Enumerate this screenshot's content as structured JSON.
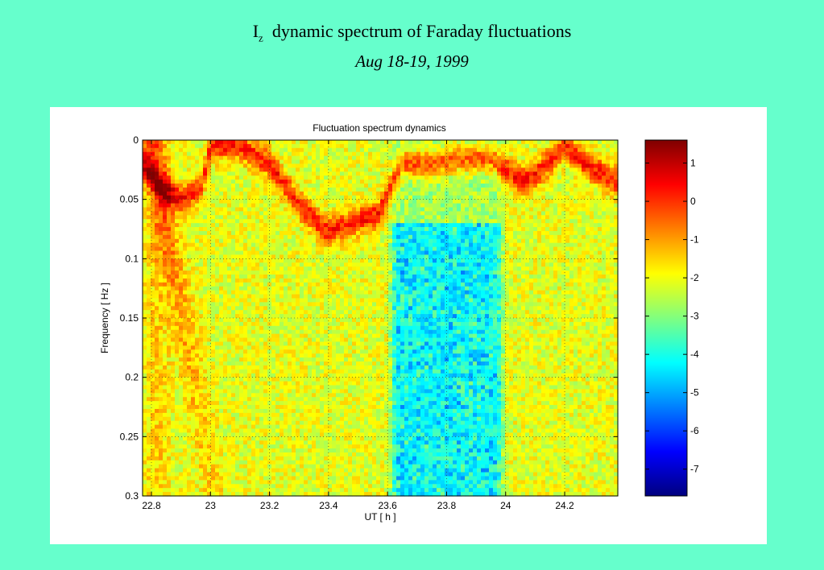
{
  "slide": {
    "title_main": "I",
    "title_sub": "z",
    "title_rest": "dynamic spectrum of Faraday fluctuations",
    "subtitle": "Aug 18-19, 1999"
  },
  "chart_data": {
    "type": "heatmap",
    "title": "Fluctuation spectrum dynamics",
    "xlabel": "UT [ h ]",
    "ylabel": "Frequency [ Hz ]",
    "xlim": [
      22.77,
      24.38
    ],
    "ylim": [
      0,
      0.3
    ],
    "y_reversed": true,
    "grid": true,
    "x_ticks": [
      22.8,
      23,
      23.2,
      23.4,
      23.6,
      23.8,
      24,
      24.2
    ],
    "x_tick_labels": [
      "22.8",
      "23",
      "23.2",
      "23.4",
      "23.6",
      "23.8",
      "24",
      "24.2"
    ],
    "y_ticks": [
      0,
      0.05,
      0.1,
      0.15,
      0.2,
      0.25,
      0.3
    ],
    "y_tick_labels": [
      "0",
      "0.05",
      "0.1",
      "0.15",
      "0.2",
      "0.25",
      "0.3"
    ],
    "colorbar": {
      "range": [
        -7.7,
        1.6
      ],
      "ticks": [
        1,
        0,
        -1,
        -2,
        -3,
        -4,
        -5,
        -6,
        -7
      ],
      "tick_labels": [
        "1",
        "0",
        "-1",
        "-2",
        "-3",
        "-4",
        "-5",
        "-6",
        "-7"
      ],
      "colormap": "jet"
    },
    "ridge_x": [
      22.77,
      22.83,
      22.9,
      22.97,
      23.0,
      23.1,
      23.2,
      23.3,
      23.4,
      23.5,
      23.57,
      23.65,
      23.75,
      23.85,
      23.95,
      24.05,
      24.1,
      24.2,
      24.27,
      24.38
    ],
    "ridge_y": [
      0.02,
      0.04,
      0.05,
      0.04,
      0.005,
      0.005,
      0.02,
      0.055,
      0.078,
      0.068,
      0.062,
      0.02,
      0.02,
      0.015,
      0.015,
      0.035,
      0.03,
      0.005,
      0.02,
      0.035
    ],
    "low_region": {
      "x_start": 23.6,
      "x_end": 24.0,
      "min_value": -5
    }
  }
}
